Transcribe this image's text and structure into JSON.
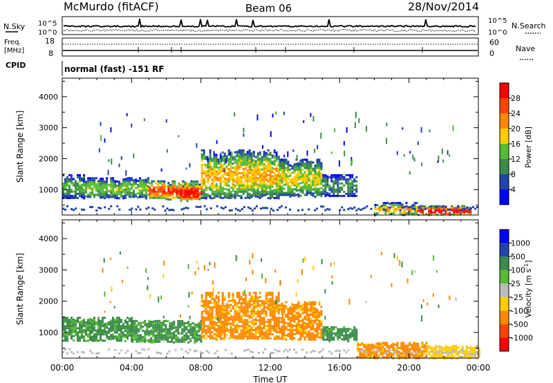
{
  "header": {
    "station": "McMurdo (fitACF)",
    "beam": "Beam 06",
    "date": "28/Nov/2014"
  },
  "top_panel": {
    "left_label": "N.Sky",
    "right_label": "N.Search",
    "left_ticks": [
      "10^5",
      "10^0"
    ],
    "right_ticks": [
      "10^5",
      "10^0"
    ]
  },
  "freq_panel": {
    "left_label_1": "Freq.",
    "left_label_2": "[MHz]",
    "right_label": "Nave",
    "left_ticks": [
      "18",
      "8"
    ],
    "right_ticks": [
      "60",
      "0"
    ]
  },
  "cpid": {
    "label": "CPID",
    "text": "normal (fast) -151 RF"
  },
  "colors": {
    "power": [
      "#0000ff",
      "#2244aa",
      "#3a8a4a",
      "#55bb33",
      "#ffcc00",
      "#ff8800",
      "#ff4400",
      "#ff0000"
    ],
    "velocity": [
      "#ff0000",
      "#ff4400",
      "#ff8800",
      "#ffcc00",
      "#bbbbbb",
      "#55bb33",
      "#3a8a4a",
      "#2244aa",
      "#0000ff"
    ]
  },
  "chart_data": [
    {
      "type": "heatmap",
      "title": "",
      "xlabel": "",
      "ylabel": "Slant Range [km]",
      "xlim": [
        "00:00",
        "00:00"
      ],
      "ylim": [
        180,
        4600
      ],
      "y_ticks": [
        "1000",
        "2000",
        "3000",
        "4000"
      ],
      "colorbar": {
        "label": "Power [dB]",
        "ticks": [
          "4",
          "8",
          "12",
          "16",
          "20",
          "24",
          "28"
        ],
        "range": [
          0,
          30
        ]
      },
      "echo_regions": [
        {
          "time_start": 0.0,
          "time_end": 1.2,
          "range_start": 750,
          "range_end": 1500,
          "power": 10
        },
        {
          "time_start": 1.2,
          "time_end": 5.0,
          "range_start": 750,
          "range_end": 1400,
          "power": 12
        },
        {
          "time_start": 5.0,
          "time_end": 8.0,
          "range_start": 700,
          "range_end": 1300,
          "power": 22
        },
        {
          "time_start": 6.8,
          "time_end": 7.8,
          "range_start": 650,
          "range_end": 1200,
          "power": 28
        },
        {
          "time_start": 8.0,
          "time_end": 12.5,
          "range_start": 750,
          "range_end": 2300,
          "power": 16
        },
        {
          "time_start": 12.5,
          "time_end": 15.0,
          "range_start": 800,
          "range_end": 2000,
          "power": 14
        },
        {
          "time_start": 15.0,
          "time_end": 17.0,
          "range_start": 800,
          "range_end": 1500,
          "power": 8
        },
        {
          "time_start": 18.0,
          "time_end": 20.5,
          "range_start": 200,
          "range_end": 600,
          "power": 16
        },
        {
          "time_start": 20.5,
          "time_end": 23.5,
          "range_start": 200,
          "range_end": 500,
          "power": 26
        }
      ]
    },
    {
      "type": "heatmap",
      "title": "",
      "xlabel": "Time UT",
      "ylabel": "Slant Range [km]",
      "xlim": [
        "00:00",
        "00:00"
      ],
      "x_ticks": [
        "00:00",
        "04:00",
        "08:00",
        "12:00",
        "16:00",
        "20:00",
        "00:00"
      ],
      "ylim": [
        180,
        4600
      ],
      "y_ticks": [
        "1000",
        "2000",
        "3000",
        "4000"
      ],
      "colorbar": {
        "label": "Velocity [m s^-1]",
        "ticks": [
          "-1000",
          "-500",
          "-100",
          "-25",
          "25",
          "100",
          "500",
          "1000"
        ]
      },
      "echo_regions": [
        {
          "time_start": 0.0,
          "time_end": 4.0,
          "range_start": 750,
          "range_end": 1500,
          "velocity": 150
        },
        {
          "time_start": 4.0,
          "time_end": 8.0,
          "range_start": 700,
          "range_end": 1400,
          "velocity": 150
        },
        {
          "time_start": 8.0,
          "time_end": 12.5,
          "range_start": 800,
          "range_end": 2300,
          "velocity": -200
        },
        {
          "time_start": 12.5,
          "time_end": 15.0,
          "range_start": 800,
          "range_end": 2000,
          "velocity": -200
        },
        {
          "time_start": 15.0,
          "time_end": 17.0,
          "range_start": 750,
          "range_end": 1200,
          "velocity": 200
        },
        {
          "time_start": 17.0,
          "time_end": 21.0,
          "range_start": 200,
          "range_end": 700,
          "velocity": -200
        },
        {
          "time_start": 21.0,
          "time_end": 24.0,
          "range_start": 200,
          "range_end": 600,
          "velocity": -50
        }
      ]
    }
  ]
}
